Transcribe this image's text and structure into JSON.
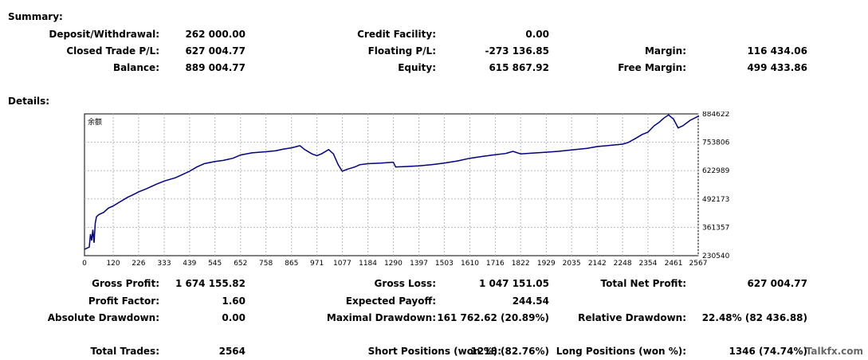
{
  "summary": {
    "heading": "Summary:",
    "deposit_label": "Deposit/Withdrawal:",
    "deposit_value": "262 000.00",
    "credit_label": "Credit Facility:",
    "credit_value": "0.00",
    "closed_label": "Closed Trade P/L:",
    "closed_value": "627 004.77",
    "floating_label": "Floating P/L:",
    "floating_value": "-273 136.85",
    "margin_label": "Margin:",
    "margin_value": "116 434.06",
    "balance_label": "Balance:",
    "balance_value": "889 004.77",
    "equity_label": "Equity:",
    "equity_value": "615 867.92",
    "free_margin_label": "Free Margin:",
    "free_margin_value": "499 433.86"
  },
  "details": {
    "heading": "Details:",
    "gross_profit_label": "Gross Profit:",
    "gross_profit_value": "1 674 155.82",
    "gross_loss_label": "Gross Loss:",
    "gross_loss_value": "1 047 151.05",
    "net_profit_label": "Total Net Profit:",
    "net_profit_value": "627 004.77",
    "profit_factor_label": "Profit Factor:",
    "profit_factor_value": "1.60",
    "expected_payoff_label": "Expected Payoff:",
    "expected_payoff_value": "244.54",
    "abs_drawdown_label": "Absolute Drawdown:",
    "abs_drawdown_value": "0.00",
    "max_drawdown_label": "Maximal Drawdown:",
    "max_drawdown_value": "161 762.62 (20.89%)",
    "rel_drawdown_label": "Relative Drawdown:",
    "rel_drawdown_value": "22.48% (82 436.88)",
    "total_trades_label": "Total Trades:",
    "total_trades_value": "2564",
    "short_label": "Short Positions (won %):",
    "short_value": "1218 (82.76%)",
    "long_label": "Long Positions (won %):",
    "long_value": "1346 (74.74%)"
  },
  "watermark": "Talkfx.com",
  "chart_data": {
    "type": "line",
    "title": "",
    "legend_label": "余额",
    "xlabel": "",
    "ylabel": "",
    "xlim": [
      0,
      2564
    ],
    "ylim": [
      230540,
      884622
    ],
    "x_ticks": [
      0,
      120,
      226,
      333,
      439,
      545,
      652,
      758,
      865,
      971,
      1077,
      1184,
      1290,
      1397,
      1503,
      1610,
      1716,
      1822,
      1929,
      2035,
      2142,
      2248,
      2354,
      2461,
      2567
    ],
    "y_ticks": [
      230540,
      361357,
      492173,
      622989,
      753806,
      884622
    ],
    "grid": true,
    "line_color": "#000080",
    "series": [
      {
        "x": [
          0,
          20,
          25,
          30,
          35,
          40,
          45,
          50,
          60,
          80,
          100,
          120,
          150,
          180,
          200,
          226,
          260,
          300,
          333,
          380,
          420,
          439,
          470,
          500,
          545,
          580,
          620,
          652,
          700,
          758,
          800,
          830,
          865,
          900,
          920,
          950,
          971,
          990,
          1020,
          1040,
          1060,
          1077,
          1100,
          1130,
          1150,
          1184,
          1240,
          1290,
          1300,
          1350,
          1397,
          1450,
          1503,
          1560,
          1610,
          1660,
          1716,
          1760,
          1790,
          1822,
          1870,
          1929,
          1980,
          2035,
          2100,
          2142,
          2200,
          2248,
          2270,
          2300,
          2330,
          2354,
          2380,
          2400,
          2420,
          2440,
          2461,
          2480,
          2500,
          2530,
          2567
        ],
        "y": [
          260000,
          270000,
          330000,
          300000,
          350000,
          290000,
          380000,
          410000,
          420000,
          430000,
          450000,
          460000,
          480000,
          500000,
          510000,
          525000,
          540000,
          560000,
          575000,
          590000,
          610000,
          620000,
          640000,
          655000,
          665000,
          670000,
          680000,
          695000,
          705000,
          710000,
          715000,
          722000,
          728000,
          738000,
          720000,
          700000,
          692000,
          700000,
          720000,
          700000,
          650000,
          620000,
          630000,
          640000,
          650000,
          655000,
          658000,
          662000,
          640000,
          642000,
          645000,
          650000,
          658000,
          668000,
          680000,
          688000,
          696000,
          702000,
          712000,
          700000,
          704000,
          708000,
          712000,
          718000,
          726000,
          734000,
          740000,
          745000,
          752000,
          770000,
          790000,
          800000,
          830000,
          845000,
          865000,
          880000,
          860000,
          820000,
          830000,
          855000,
          875000
        ]
      }
    ]
  }
}
